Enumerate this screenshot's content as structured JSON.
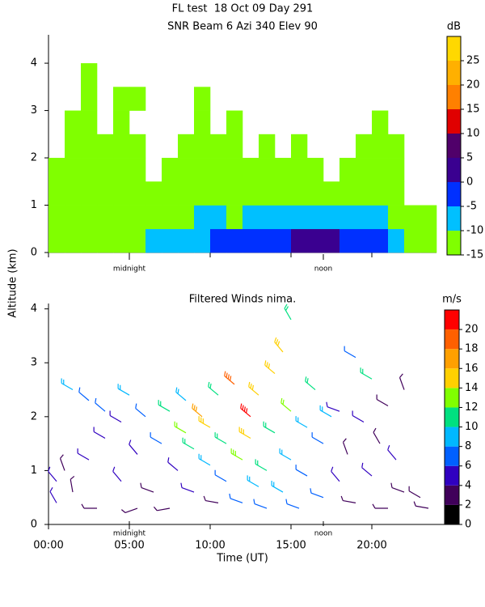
{
  "chart_data": [
    {
      "type": "heatmap",
      "title": "FL test  18 Oct 09 Day 291",
      "subtitle": "SNR Beam 6 Azi 340 Elev 90",
      "ylabel": "Altitude (km)",
      "x_bins": [
        0,
        1,
        2,
        3,
        4,
        5,
        6,
        7,
        8,
        9,
        10,
        11,
        12,
        13,
        14,
        15,
        16,
        17,
        18,
        19,
        20,
        21,
        22,
        23,
        24
      ],
      "y_bins": [
        0,
        0.5,
        1,
        1.5,
        2,
        2.5,
        3,
        3.5,
        4
      ],
      "z": [
        [
          -12,
          -12,
          -11,
          -12,
          -12,
          -11,
          -10,
          -10,
          -8,
          -6,
          -5,
          -5,
          -5,
          -4,
          -3,
          0,
          2,
          0,
          -2,
          -3,
          -4,
          -8,
          -11,
          -12
        ],
        [
          -13,
          -12,
          -12,
          -13,
          -13,
          -13,
          -12,
          -12,
          -11,
          -10,
          -10,
          -11,
          -10,
          -9,
          -8,
          -7,
          -6,
          -7,
          -8,
          -9,
          -10,
          -12,
          -13,
          -14
        ],
        [
          -13,
          -12,
          -13,
          -14,
          -13,
          -14,
          -14,
          -13,
          -13,
          -12,
          -12,
          -12,
          -13,
          -12,
          -13,
          -12,
          -13,
          -13,
          -13,
          -12,
          -13,
          -14,
          null,
          null
        ],
        [
          -13,
          -13,
          -13,
          -14,
          -13,
          -14,
          null,
          -14,
          -13,
          -13,
          -13,
          -13,
          -14,
          -14,
          -14,
          -14,
          -14,
          null,
          -14,
          -13,
          -13,
          -14,
          null,
          null
        ],
        [
          null,
          -14,
          -13,
          -14,
          -13,
          -14,
          null,
          null,
          -14,
          -14,
          -14,
          -14,
          null,
          -14,
          null,
          -14,
          null,
          null,
          null,
          -14,
          -14,
          -14,
          null,
          null
        ],
        [
          null,
          -14,
          -14,
          null,
          -14,
          null,
          null,
          null,
          null,
          -14,
          null,
          -14,
          null,
          null,
          null,
          null,
          null,
          null,
          null,
          null,
          -14,
          null,
          null,
          null
        ],
        [
          null,
          null,
          -14,
          null,
          -14,
          -14,
          null,
          null,
          null,
          -14,
          null,
          null,
          null,
          null,
          null,
          null,
          null,
          null,
          null,
          null,
          null,
          null,
          null,
          null
        ],
        [
          null,
          null,
          -14,
          null,
          null,
          null,
          null,
          null,
          null,
          null,
          null,
          null,
          null,
          null,
          null,
          null,
          null,
          null,
          null,
          null,
          null,
          null,
          null,
          null
        ]
      ],
      "xlim": [
        0,
        24
      ],
      "xticks": [
        0,
        5,
        10,
        15,
        20
      ],
      "ylim": [
        0,
        4.6
      ],
      "yticks": [
        0,
        1,
        2,
        3,
        4
      ],
      "annotations": [
        {
          "text": "midnight",
          "x": 5
        },
        {
          "text": "noon",
          "x": 17
        }
      ],
      "colorbar": {
        "title": "dB",
        "levels": [
          -15,
          -10,
          -5,
          0,
          5,
          10,
          15,
          20,
          25,
          30
        ],
        "colors": [
          "#80ff00",
          "#00c0ff",
          "#0030ff",
          "#3a0090",
          "#50006a",
          "#e00000",
          "#ff8000",
          "#ffb000",
          "#ffd800"
        ],
        "ticks": [
          -15,
          -10,
          -5,
          0,
          5,
          10,
          15,
          20,
          25
        ]
      }
    },
    {
      "type": "barbs",
      "title": "Filtered Winds nima.",
      "xlabel": "Time (UT)",
      "x": [
        0.5,
        0.5,
        1,
        1.5,
        1.5,
        2.5,
        2.5,
        3,
        3.5,
        3.5,
        4.5,
        4.5,
        5,
        5.5,
        5.5,
        6,
        6.5,
        7,
        7.5,
        7.5,
        8,
        8.5,
        8.5,
        9,
        9,
        9.5,
        10,
        10,
        10.5,
        10.5,
        11,
        11,
        11.5,
        12,
        12,
        12.5,
        12.5,
        13,
        13,
        13.5,
        13.5,
        14,
        14,
        14.5,
        14.5,
        15,
        15,
        15,
        15.5,
        16,
        16,
        16.5,
        17,
        17,
        17.5,
        18,
        18,
        18.5,
        19,
        19,
        19.5,
        20,
        20,
        20.5,
        21,
        21,
        21.5,
        22,
        22,
        23,
        23.5
      ],
      "y": [
        0.4,
        0.8,
        1.0,
        2.5,
        0.6,
        2.3,
        1.2,
        0.3,
        1.6,
        2.1,
        0.8,
        1.9,
        2.4,
        0.3,
        1.3,
        2.0,
        0.6,
        1.5,
        2.1,
        0.3,
        1.0,
        1.7,
        2.3,
        0.6,
        1.4,
        2.0,
        1.1,
        1.8,
        0.4,
        2.4,
        1.5,
        0.8,
        2.6,
        1.2,
        0.4,
        2.0,
        1.6,
        0.7,
        2.4,
        1.0,
        0.3,
        2.8,
        1.7,
        0.6,
        3.2,
        3.8,
        1.2,
        2.1,
        0.3,
        1.8,
        0.9,
        2.5,
        0.5,
        1.5,
        2.0,
        0.8,
        2.1,
        1.3,
        3.1,
        0.4,
        1.9,
        0.9,
        2.7,
        1.5,
        0.3,
        2.2,
        1.2,
        0.6,
        2.5,
        0.5,
        0.3
      ],
      "speed": [
        4,
        4,
        3,
        8,
        3,
        7,
        4,
        2,
        5,
        6,
        4,
        5,
        8,
        2,
        4,
        7,
        3,
        6,
        10,
        2,
        5,
        12,
        9,
        4,
        10,
        16,
        8,
        14,
        3,
        11,
        10,
        7,
        18,
        13,
        6,
        20,
        14,
        8,
        14,
        10,
        6,
        15,
        10,
        8,
        14,
        10,
        9,
        12,
        7,
        8,
        7,
        11,
        6,
        7,
        8,
        4,
        4,
        3,
        7,
        3,
        4,
        4,
        11,
        3,
        2,
        3,
        4,
        3,
        2,
        3,
        2
      ],
      "direction": [
        330,
        320,
        340,
        300,
        350,
        310,
        300,
        270,
        300,
        310,
        320,
        300,
        300,
        250,
        320,
        310,
        290,
        300,
        300,
        260,
        310,
        300,
        310,
        290,
        300,
        310,
        300,
        300,
        280,
        310,
        300,
        300,
        310,
        300,
        290,
        310,
        300,
        300,
        310,
        300,
        290,
        310,
        300,
        300,
        320,
        330,
        300,
        310,
        290,
        300,
        300,
        310,
        290,
        300,
        300,
        320,
        290,
        340,
        300,
        280,
        300,
        310,
        300,
        330,
        270,
        300,
        320,
        290,
        340,
        300,
        280
      ],
      "xlim": [
        0,
        24.5
      ],
      "xticks": [
        {
          "value": 0,
          "label": "00:00"
        },
        {
          "value": 5,
          "label": "05:00"
        },
        {
          "value": 10,
          "label": "10:00"
        },
        {
          "value": 15,
          "label": "15:00"
        },
        {
          "value": 20,
          "label": "20:00"
        }
      ],
      "ylim": [
        0,
        4.1
      ],
      "yticks": [
        0,
        1,
        2,
        3,
        4
      ],
      "annotations": [
        {
          "text": "midnight",
          "x": 5
        },
        {
          "text": "noon",
          "x": 17
        }
      ],
      "colorbar": {
        "title": "m/s",
        "levels": [
          0,
          2,
          4,
          6,
          8,
          10,
          12,
          14,
          16,
          18,
          20,
          22
        ],
        "colors": [
          "#000000",
          "#40005a",
          "#3000c0",
          "#0060ff",
          "#00b8ff",
          "#00e080",
          "#80ff00",
          "#ffd000",
          "#ffa000",
          "#ff6000",
          "#ff0000"
        ],
        "ticks": [
          0,
          2,
          4,
          6,
          8,
          10,
          12,
          14,
          16,
          18,
          20
        ]
      }
    }
  ]
}
